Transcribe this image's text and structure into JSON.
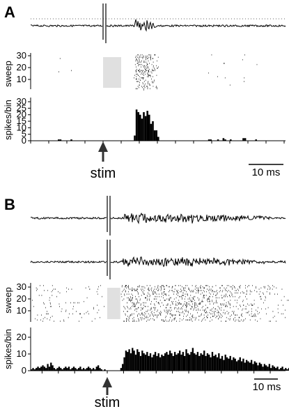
{
  "panels": [
    {
      "letter": "A",
      "raster_ylabel": "sweep",
      "raster_yticks": [
        "30",
        "20",
        "10"
      ],
      "hist_ylabel": "spikes/bin",
      "hist_yticks": [
        "30",
        "25",
        "20",
        "15",
        "10",
        "5",
        "0"
      ],
      "stim_label": "stim",
      "scalebar_label": "10 ms"
    },
    {
      "letter": "B",
      "raster_ylabel": "sweep",
      "raster_yticks": [
        "30",
        "20",
        "10"
      ],
      "hist_ylabel": "spikes/bin",
      "hist_yticks": [
        "20",
        "10",
        "0"
      ],
      "stim_label": "stim",
      "scalebar_label": "10 ms"
    }
  ],
  "chart_data": [
    {
      "type": "bar",
      "panel": "A",
      "ylabel": "spikes/bin",
      "xlabel": "",
      "ylim": [
        0,
        30
      ],
      "x_unit": "ms",
      "stim_time_ms": 0,
      "bin_ms": 1,
      "scalebar_ms": 10,
      "x_range_ms": [
        -40,
        95
      ],
      "blank_window_ms": [
        0,
        10
      ],
      "bins": [
        {
          "t": -25,
          "v": 1
        },
        {
          "t": -24,
          "v": 1
        },
        {
          "t": -18,
          "v": 1
        },
        {
          "t": 17,
          "v": 4
        },
        {
          "t": 18,
          "v": 24
        },
        {
          "t": 19,
          "v": 22
        },
        {
          "t": 20,
          "v": 20
        },
        {
          "t": 21,
          "v": 17
        },
        {
          "t": 22,
          "v": 22
        },
        {
          "t": 23,
          "v": 19
        },
        {
          "t": 24,
          "v": 23
        },
        {
          "t": 25,
          "v": 20
        },
        {
          "t": 26,
          "v": 13
        },
        {
          "t": 27,
          "v": 15
        },
        {
          "t": 28,
          "v": 8
        },
        {
          "t": 29,
          "v": 8
        },
        {
          "t": 30,
          "v": 3
        },
        {
          "t": 58,
          "v": 1
        },
        {
          "t": 59,
          "v": 1
        },
        {
          "t": 63,
          "v": 1
        },
        {
          "t": 66,
          "v": 2
        },
        {
          "t": 67,
          "v": 1
        },
        {
          "t": 70,
          "v": 1
        },
        {
          "t": 77,
          "v": 2
        },
        {
          "t": 78,
          "v": 2
        },
        {
          "t": 84,
          "v": 1
        }
      ]
    },
    {
      "type": "bar",
      "panel": "B",
      "ylabel": "spikes/bin",
      "xlabel": "",
      "ylim": [
        0,
        25
      ],
      "x_unit": "ms",
      "stim_time_ms": 0,
      "bin_ms": 1,
      "scalebar_ms": 10,
      "x_range_ms": [
        -47,
        112
      ],
      "blank_window_ms": [
        0,
        8
      ],
      "bins": [
        {
          "t": -47,
          "v": 1
        },
        {
          "t": -46,
          "v": 2
        },
        {
          "t": -45,
          "v": 1
        },
        {
          "t": -44,
          "v": 2
        },
        {
          "t": -43,
          "v": 3
        },
        {
          "t": -42,
          "v": 2
        },
        {
          "t": -41,
          "v": 3
        },
        {
          "t": -40,
          "v": 4
        },
        {
          "t": -39,
          "v": 3
        },
        {
          "t": -38,
          "v": 2
        },
        {
          "t": -37,
          "v": 5
        },
        {
          "t": -36,
          "v": 3
        },
        {
          "t": -35,
          "v": 6
        },
        {
          "t": -34,
          "v": 4
        },
        {
          "t": -33,
          "v": 2
        },
        {
          "t": -32,
          "v": 1
        },
        {
          "t": -31,
          "v": 2
        },
        {
          "t": -30,
          "v": 3
        },
        {
          "t": -29,
          "v": 2
        },
        {
          "t": -28,
          "v": 1
        },
        {
          "t": -27,
          "v": 2
        },
        {
          "t": -26,
          "v": 3
        },
        {
          "t": -25,
          "v": 2
        },
        {
          "t": -24,
          "v": 3
        },
        {
          "t": -23,
          "v": 1
        },
        {
          "t": -22,
          "v": 2
        },
        {
          "t": -21,
          "v": 3
        },
        {
          "t": -20,
          "v": 2
        },
        {
          "t": -19,
          "v": 1
        },
        {
          "t": -18,
          "v": 2
        },
        {
          "t": -17,
          "v": 3
        },
        {
          "t": -16,
          "v": 1
        },
        {
          "t": -15,
          "v": 2
        },
        {
          "t": -14,
          "v": 1
        },
        {
          "t": -13,
          "v": 2
        },
        {
          "t": -12,
          "v": 3
        },
        {
          "t": -11,
          "v": 2
        },
        {
          "t": -10,
          "v": 1
        },
        {
          "t": -9,
          "v": 2
        },
        {
          "t": -8,
          "v": 1
        },
        {
          "t": -7,
          "v": 3
        },
        {
          "t": -6,
          "v": 4
        },
        {
          "t": -5,
          "v": 2
        },
        {
          "t": -4,
          "v": 1
        },
        {
          "t": -3,
          "v": 0
        },
        {
          "t": -2,
          "v": 1
        },
        {
          "t": -1,
          "v": 0
        },
        {
          "t": 8,
          "v": 2
        },
        {
          "t": 9,
          "v": 5
        },
        {
          "t": 10,
          "v": 10
        },
        {
          "t": 11,
          "v": 15
        },
        {
          "t": 12,
          "v": 14
        },
        {
          "t": 13,
          "v": 16
        },
        {
          "t": 14,
          "v": 13
        },
        {
          "t": 15,
          "v": 17
        },
        {
          "t": 16,
          "v": 15
        },
        {
          "t": 17,
          "v": 12
        },
        {
          "t": 18,
          "v": 16
        },
        {
          "t": 19,
          "v": 14
        },
        {
          "t": 20,
          "v": 11
        },
        {
          "t": 21,
          "v": 15
        },
        {
          "t": 22,
          "v": 13
        },
        {
          "t": 23,
          "v": 12
        },
        {
          "t": 24,
          "v": 14
        },
        {
          "t": 25,
          "v": 11
        },
        {
          "t": 26,
          "v": 13
        },
        {
          "t": 27,
          "v": 10
        },
        {
          "t": 28,
          "v": 12
        },
        {
          "t": 29,
          "v": 14
        },
        {
          "t": 30,
          "v": 11
        },
        {
          "t": 31,
          "v": 13
        },
        {
          "t": 32,
          "v": 10
        },
        {
          "t": 33,
          "v": 12
        },
        {
          "t": 34,
          "v": 11
        },
        {
          "t": 35,
          "v": 13
        },
        {
          "t": 36,
          "v": 14
        },
        {
          "t": 37,
          "v": 12
        },
        {
          "t": 38,
          "v": 15
        },
        {
          "t": 39,
          "v": 13
        },
        {
          "t": 40,
          "v": 11
        },
        {
          "t": 41,
          "v": 14
        },
        {
          "t": 42,
          "v": 12
        },
        {
          "t": 43,
          "v": 13
        },
        {
          "t": 44,
          "v": 15
        },
        {
          "t": 45,
          "v": 12
        },
        {
          "t": 46,
          "v": 14
        },
        {
          "t": 47,
          "v": 11
        },
        {
          "t": 48,
          "v": 16
        },
        {
          "t": 49,
          "v": 13
        },
        {
          "t": 50,
          "v": 12
        },
        {
          "t": 51,
          "v": 14
        },
        {
          "t": 52,
          "v": 17
        },
        {
          "t": 53,
          "v": 13
        },
        {
          "t": 54,
          "v": 12
        },
        {
          "t": 55,
          "v": 14
        },
        {
          "t": 56,
          "v": 11
        },
        {
          "t": 57,
          "v": 13
        },
        {
          "t": 58,
          "v": 12
        },
        {
          "t": 59,
          "v": 15
        },
        {
          "t": 60,
          "v": 11
        },
        {
          "t": 61,
          "v": 13
        },
        {
          "t": 62,
          "v": 12
        },
        {
          "t": 63,
          "v": 10
        },
        {
          "t": 64,
          "v": 14
        },
        {
          "t": 65,
          "v": 11
        },
        {
          "t": 66,
          "v": 12
        },
        {
          "t": 67,
          "v": 10
        },
        {
          "t": 68,
          "v": 13
        },
        {
          "t": 69,
          "v": 9
        },
        {
          "t": 70,
          "v": 11
        },
        {
          "t": 71,
          "v": 8
        },
        {
          "t": 72,
          "v": 12
        },
        {
          "t": 73,
          "v": 10
        },
        {
          "t": 74,
          "v": 9
        },
        {
          "t": 75,
          "v": 11
        },
        {
          "t": 76,
          "v": 8
        },
        {
          "t": 77,
          "v": 10
        },
        {
          "t": 78,
          "v": 9
        },
        {
          "t": 79,
          "v": 7
        },
        {
          "t": 80,
          "v": 8
        },
        {
          "t": 81,
          "v": 10
        },
        {
          "t": 82,
          "v": 7
        },
        {
          "t": 83,
          "v": 9
        },
        {
          "t": 84,
          "v": 6
        },
        {
          "t": 85,
          "v": 8
        },
        {
          "t": 86,
          "v": 7
        },
        {
          "t": 87,
          "v": 6
        },
        {
          "t": 88,
          "v": 8
        },
        {
          "t": 89,
          "v": 5
        },
        {
          "t": 90,
          "v": 7
        },
        {
          "t": 91,
          "v": 6
        },
        {
          "t": 92,
          "v": 4
        },
        {
          "t": 93,
          "v": 6
        },
        {
          "t": 94,
          "v": 5
        },
        {
          "t": 95,
          "v": 3
        },
        {
          "t": 96,
          "v": 5
        },
        {
          "t": 97,
          "v": 4
        },
        {
          "t": 98,
          "v": 3
        },
        {
          "t": 99,
          "v": 5
        },
        {
          "t": 100,
          "v": 2
        },
        {
          "t": 101,
          "v": 4
        },
        {
          "t": 102,
          "v": 3
        },
        {
          "t": 103,
          "v": 2
        },
        {
          "t": 104,
          "v": 3
        },
        {
          "t": 105,
          "v": 1
        },
        {
          "t": 106,
          "v": 2
        },
        {
          "t": 107,
          "v": 3
        },
        {
          "t": 108,
          "v": 1
        },
        {
          "t": 109,
          "v": 2
        },
        {
          "t": 110,
          "v": 1
        },
        {
          "t": 111,
          "v": 2
        }
      ]
    }
  ]
}
